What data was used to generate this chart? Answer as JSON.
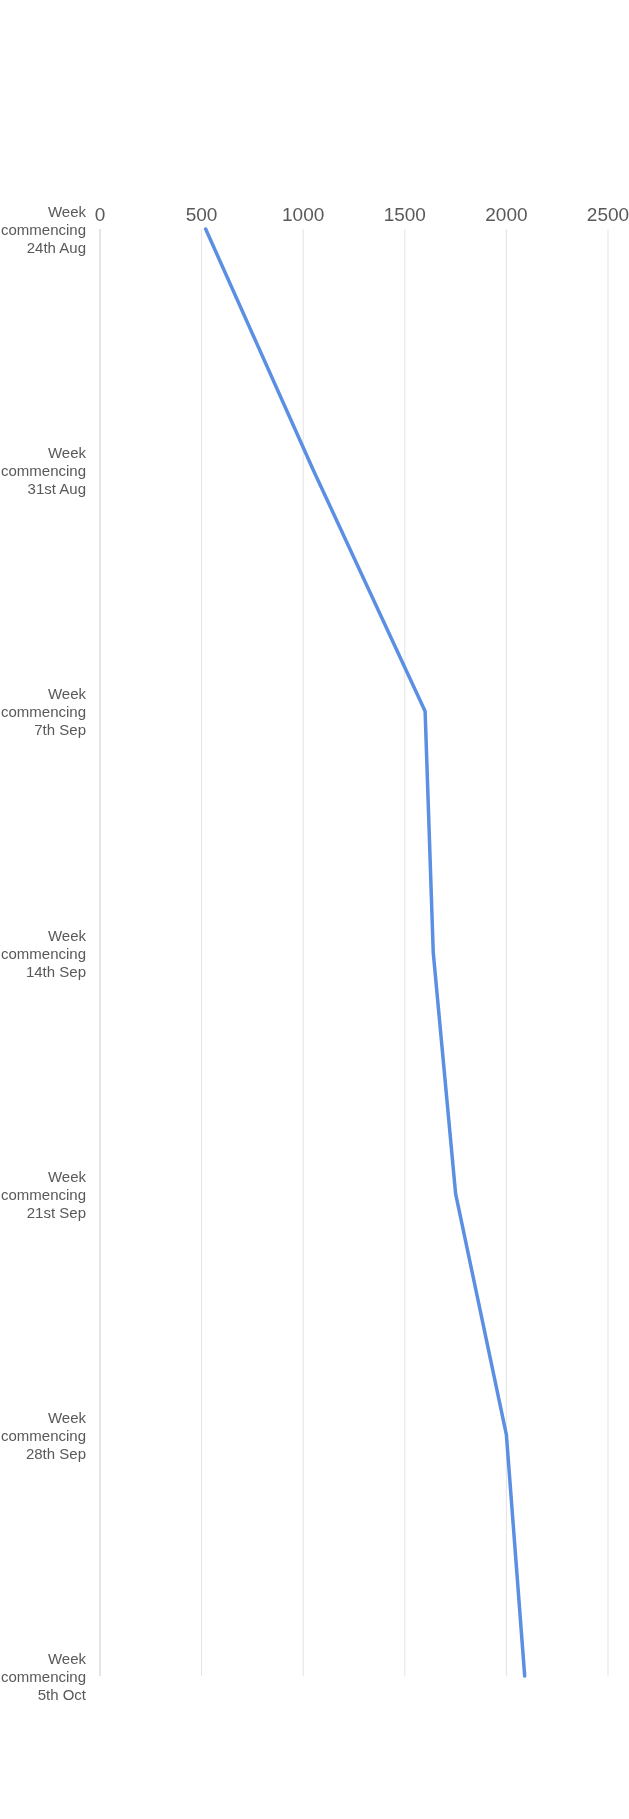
{
  "chart_data": {
    "type": "line",
    "orientation": "horizontal",
    "categories": [
      "Week commencing 24th Aug",
      "Week commencing 31st Aug",
      "Week commencing 7th Sep",
      "Week commencing 14th Sep",
      "Week commencing 21st Sep",
      "Week commencing 28th Sep",
      "Week commencing 5th Oct"
    ],
    "series": [
      {
        "color": "#5b8fe3",
        "values": [
          520,
          1050,
          1600,
          1640,
          1750,
          2000,
          2090
        ]
      }
    ],
    "xlim": [
      0,
      2500
    ],
    "xticks": [
      0,
      500,
      1000,
      1500,
      2000,
      2500
    ],
    "grid": "x",
    "marker": "none",
    "line_style": "solid"
  }
}
